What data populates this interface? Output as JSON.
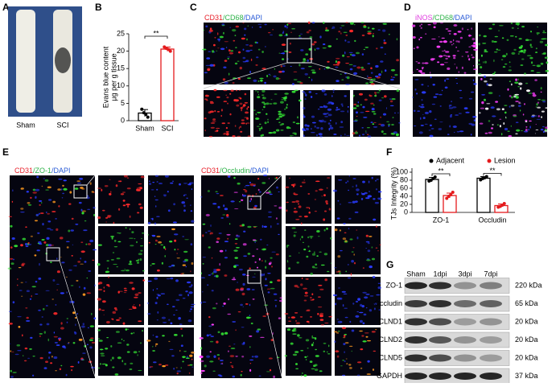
{
  "panel_labels": [
    "A",
    "B",
    "C",
    "D",
    "E",
    "F",
    "G"
  ],
  "panel_a": {
    "labels": [
      "Sham",
      "SCI"
    ]
  },
  "panel_c": {
    "stain": [
      "CD31",
      "/CD68",
      "/DAPI"
    ]
  },
  "panel_d": {
    "stain": [
      "iNOS",
      "/CD68",
      "/DAPI"
    ]
  },
  "panel_e": {
    "stains": [
      [
        "CD31",
        "/ZO-1",
        "/DAPI"
      ],
      [
        "CD31",
        "/Occludin",
        "/DAPI"
      ]
    ]
  },
  "panel_g": {
    "lanes": [
      "Sham",
      "1dpi",
      "3dpi",
      "7dpi"
    ],
    "rows": [
      {
        "protein": "ZO-1",
        "size": "220 kDa"
      },
      {
        "protein": "Occludin",
        "size": "65 kDa"
      },
      {
        "protein": "CLND1",
        "size": "20 kDa"
      },
      {
        "protein": "CLND2",
        "size": "20 kDa"
      },
      {
        "protein": "CLND5",
        "size": "20 kDa"
      },
      {
        "protein": "GAPDH",
        "size": "37 kDa"
      }
    ]
  },
  "chart_data": [
    {
      "type": "bar",
      "ylabel": [
        "Evans blue content",
        "μg per g tissue"
      ],
      "categories": [
        "Sham",
        "SCI"
      ],
      "values": [
        2.2,
        20.6
      ],
      "errors": [
        1.0,
        0.6
      ],
      "points": [
        [
          3.3,
          2.3,
          1.8,
          1.0
        ],
        [
          21.2,
          20.8,
          20.5,
          20.0
        ]
      ],
      "colors": [
        "#000000",
        "#e41a1c"
      ],
      "ylim": [
        0,
        25
      ],
      "yticks": [
        0,
        5,
        10,
        15,
        20,
        25
      ],
      "significance": [
        "**"
      ]
    },
    {
      "type": "bar",
      "ylabel": "TJs Integrity (%)",
      "categories": [
        "ZO-1",
        "Occludin"
      ],
      "series": [
        {
          "name": "Adjacent",
          "color": "#000000",
          "values": [
            82,
            85
          ],
          "errors": [
            5,
            4
          ],
          "points": [
            [
              78,
              80,
              84,
              88
            ],
            [
              81,
              84,
              86,
              89
            ]
          ]
        },
        {
          "name": "Lesion",
          "color": "#e41a1c",
          "values": [
            42,
            17
          ],
          "errors": [
            6,
            4
          ],
          "points": [
            [
              35,
              40,
              44,
              50
            ],
            [
              13,
              15,
              18,
              22
            ]
          ]
        }
      ],
      "ylim": [
        0,
        110
      ],
      "yticks": [
        0,
        20,
        40,
        60,
        80,
        100
      ],
      "significance": [
        "**",
        "**"
      ]
    }
  ]
}
